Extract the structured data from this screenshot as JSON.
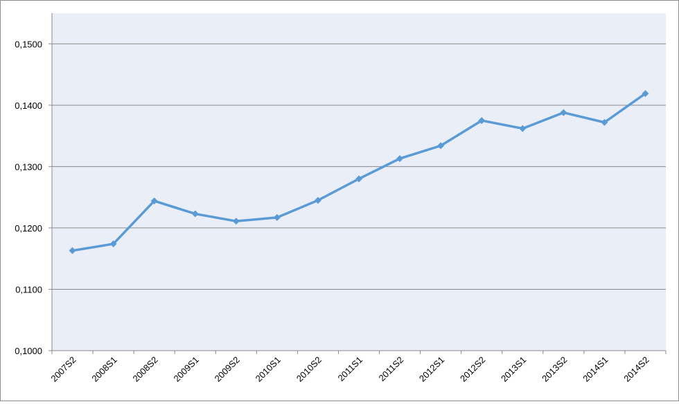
{
  "chart_data": {
    "type": "line",
    "title": "",
    "xlabel": "",
    "ylabel": "",
    "categories": [
      "2007S2",
      "2008S1",
      "2008S2",
      "2009S1",
      "2009S2",
      "2010S1",
      "2010S2",
      "2011S1",
      "2011S2",
      "2012S1",
      "2012S2",
      "2013S1",
      "2013S2",
      "2014S1",
      "2014S2"
    ],
    "series": [
      {
        "values": [
          0.1163,
          0.1174,
          0.1244,
          0.1223,
          0.1211,
          0.1217,
          0.1245,
          0.128,
          0.1313,
          0.1334,
          0.1375,
          0.1362,
          0.1388,
          0.1372,
          0.1419
        ]
      }
    ],
    "ylim": [
      0.1,
      0.155
    ],
    "yticks": [
      0.1,
      0.11,
      0.12,
      0.13,
      0.14,
      0.15
    ],
    "ytick_labels": [
      "0,1000",
      "0,1100",
      "0,1200",
      "0,1300",
      "0,1400",
      "0,1500"
    ],
    "grid": true,
    "legend": "none",
    "colors": {
      "plot_background": "#e9eef7",
      "line": "#5b9bd5",
      "gridline": "#8a8a8a",
      "axis": "#8a8a8a"
    }
  }
}
